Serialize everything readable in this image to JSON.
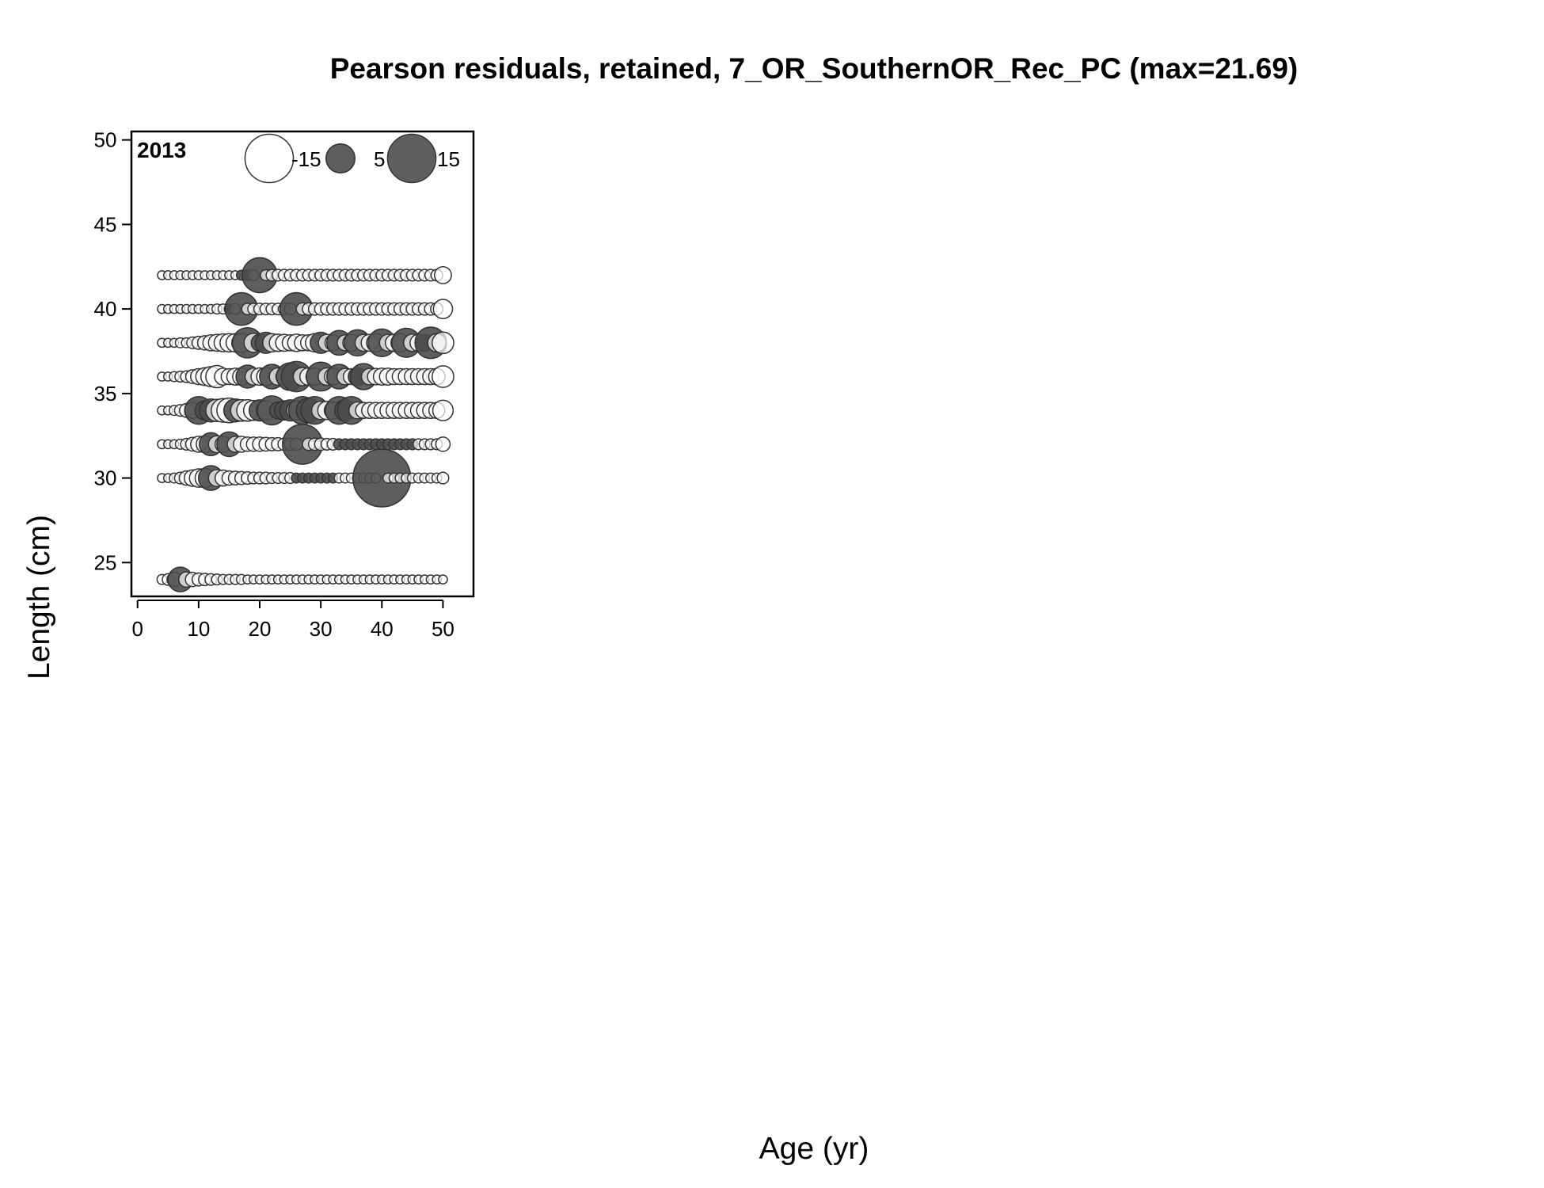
{
  "chart_data": {
    "type": "scatter",
    "subtype": "bubble",
    "title": "Pearson residuals, retained, 7_OR_SouthernOR_Rec_PC (max=21.69)",
    "xlabel": "Age (yr)",
    "ylabel": "Length (cm)",
    "panel_label": "2013",
    "xlim": [
      -1,
      55
    ],
    "ylim": [
      23,
      50.5
    ],
    "x_ticks": [
      0,
      10,
      20,
      30,
      40,
      50
    ],
    "y_ticks": [
      25,
      30,
      35,
      40,
      45,
      50
    ],
    "grid": false,
    "colors": {
      "positive": "#4d4d4d",
      "negative": "#ffffff",
      "stroke": "#333333"
    },
    "legend": {
      "position": "top-right",
      "entries": [
        {
          "label": "-15",
          "value": -15
        },
        {
          "label": "5",
          "value": 5
        },
        {
          "label": "15",
          "value": 15
        }
      ]
    },
    "ages": [
      4,
      5,
      6,
      7,
      8,
      9,
      10,
      11,
      12,
      13,
      14,
      15,
      16,
      17,
      18,
      19,
      20,
      21,
      22,
      23,
      24,
      25,
      26,
      27,
      28,
      29,
      30,
      31,
      32,
      33,
      34,
      35,
      36,
      37,
      38,
      39,
      40,
      41,
      42,
      43,
      44,
      45,
      46,
      47,
      48,
      49,
      50
    ],
    "rows": [
      {
        "length": 42,
        "residuals": [
          -0.3,
          -0.3,
          -0.3,
          -0.3,
          -0.3,
          -0.3,
          -0.3,
          -0.3,
          -0.3,
          -0.3,
          -0.3,
          -0.3,
          -0.3,
          0.4,
          0.5,
          -0.5,
          7.5,
          -0.5,
          -0.6,
          -0.6,
          -0.6,
          -0.6,
          -0.6,
          -0.6,
          -0.6,
          -0.6,
          -0.6,
          -0.6,
          -0.6,
          -0.6,
          -0.6,
          -0.6,
          -0.6,
          -0.6,
          -0.6,
          -0.6,
          -0.6,
          -0.6,
          -0.6,
          -0.6,
          -0.6,
          -0.6,
          -0.6,
          -0.6,
          -0.6,
          -0.6,
          -1.5
        ]
      },
      {
        "length": 40,
        "residuals": [
          -0.3,
          -0.3,
          -0.3,
          -0.3,
          -0.3,
          -0.3,
          -0.3,
          -0.3,
          -0.3,
          -0.4,
          -0.4,
          0.4,
          -0.5,
          6.5,
          -0.6,
          -0.6,
          -0.6,
          -0.6,
          -0.6,
          -0.6,
          -0.6,
          -0.6,
          6.5,
          -0.7,
          -0.7,
          -0.7,
          -0.7,
          -0.7,
          -0.7,
          -0.7,
          -0.7,
          -0.7,
          -0.7,
          -0.7,
          -0.7,
          -0.7,
          -0.7,
          -0.7,
          -0.7,
          -0.7,
          -0.7,
          -0.7,
          -0.7,
          -0.7,
          -0.7,
          -0.7,
          -2.0
        ]
      },
      {
        "length": 38,
        "residuals": [
          -0.3,
          -0.3,
          -0.3,
          -0.4,
          -0.4,
          -0.6,
          -0.8,
          -1.0,
          -1.3,
          -1.5,
          -1.7,
          -1.8,
          -1.8,
          -2.0,
          5.5,
          -2.0,
          1.5,
          2.5,
          -1.8,
          -1.6,
          -1.5,
          -1.3,
          -1.6,
          -1.3,
          -1.3,
          -1.8,
          2.5,
          -1.5,
          -1.3,
          3.5,
          -1.3,
          -1.5,
          4.0,
          -1.5,
          -1.5,
          -1.8,
          4.5,
          -1.5,
          -1.6,
          -1.8,
          5.0,
          -1.6,
          -1.5,
          1.5,
          6.0,
          -1.8,
          -2.6
        ]
      },
      {
        "length": 36,
        "residuals": [
          -0.3,
          -0.3,
          -0.4,
          -0.5,
          -0.6,
          -0.9,
          -1.3,
          -1.7,
          -2.2,
          -2.8,
          -1.5,
          -1.3,
          -1.5,
          -1.6,
          3.0,
          -1.5,
          -1.6,
          -1.8,
          3.5,
          -1.6,
          -1.4,
          4.5,
          5.5,
          -1.8,
          -1.6,
          -1.6,
          5.0,
          -1.6,
          -1.5,
          3.5,
          -1.4,
          -1.3,
          1.8,
          4.0,
          -1.4,
          -1.4,
          -1.5,
          -1.5,
          -1.3,
          -1.3,
          -1.3,
          -1.3,
          -1.3,
          -1.3,
          -1.3,
          -1.4,
          -2.6
        ]
      },
      {
        "length": 34,
        "residuals": [
          -0.3,
          -0.3,
          -0.4,
          -0.6,
          -0.9,
          -1.3,
          4.5,
          2.0,
          3.0,
          -2.8,
          -3.2,
          -3.5,
          3.0,
          -2.6,
          -2.6,
          -2.2,
          2.5,
          -2.0,
          5.0,
          1.5,
          2.0,
          2.5,
          -2.0,
          4.5,
          3.5,
          4.5,
          -1.8,
          -1.8,
          -1.6,
          4.5,
          2.5,
          4.5,
          -1.5,
          -1.3,
          -1.3,
          -1.3,
          -1.3,
          -1.3,
          -1.3,
          -1.3,
          -1.3,
          -1.3,
          -1.3,
          -1.3,
          -1.3,
          -1.3,
          -2.3
        ]
      },
      {
        "length": 32,
        "residuals": [
          -0.3,
          -0.3,
          -0.3,
          -0.4,
          -0.6,
          -0.9,
          -1.3,
          -1.5,
          3.0,
          -1.5,
          -1.3,
          3.5,
          -1.3,
          -1.3,
          -1.0,
          -1.0,
          -1.0,
          -0.9,
          -0.8,
          -0.8,
          -0.7,
          -0.7,
          -0.7,
          10.0,
          -0.7,
          -0.7,
          -0.7,
          -0.6,
          -0.6,
          0.5,
          0.5,
          0.5,
          0.5,
          0.5,
          0.5,
          0.5,
          0.5,
          0.5,
          0.5,
          0.5,
          0.5,
          0.5,
          -0.5,
          -0.5,
          -0.5,
          -0.5,
          -1.0
        ]
      },
      {
        "length": 30,
        "residuals": [
          -0.3,
          -0.3,
          -0.4,
          -0.6,
          -1.0,
          -1.4,
          -1.8,
          -2.0,
          3.5,
          -1.5,
          -1.3,
          -1.0,
          -0.9,
          -0.8,
          -0.7,
          -0.6,
          -0.6,
          -0.6,
          -0.5,
          -0.5,
          -0.5,
          -0.5,
          0.4,
          0.4,
          0.4,
          0.4,
          0.4,
          0.4,
          0.4,
          -0.4,
          -0.4,
          -0.4,
          -0.4,
          -0.4,
          -0.4,
          -0.4,
          21.69,
          -0.4,
          -0.4,
          -0.4,
          -0.4,
          -0.4,
          -0.4,
          -0.4,
          -0.4,
          -0.4,
          -0.6
        ]
      },
      {
        "length": 24,
        "residuals": [
          -0.4,
          -0.6,
          -1.0,
          3.5,
          -1.2,
          -1.0,
          -0.8,
          -0.7,
          -0.6,
          -0.5,
          -0.4,
          -0.4,
          -0.4,
          -0.4,
          -0.3,
          -0.3,
          -0.3,
          -0.3,
          -0.3,
          -0.3,
          -0.3,
          -0.3,
          -0.3,
          -0.3,
          -0.3,
          -0.3,
          -0.3,
          -0.3,
          -0.3,
          -0.3,
          -0.3,
          -0.3,
          -0.3,
          -0.3,
          -0.3,
          -0.3,
          -0.3,
          -0.3,
          -0.3,
          -0.3,
          -0.3,
          -0.3,
          -0.3,
          -0.3,
          -0.3,
          -0.3,
          -0.3
        ]
      }
    ]
  }
}
